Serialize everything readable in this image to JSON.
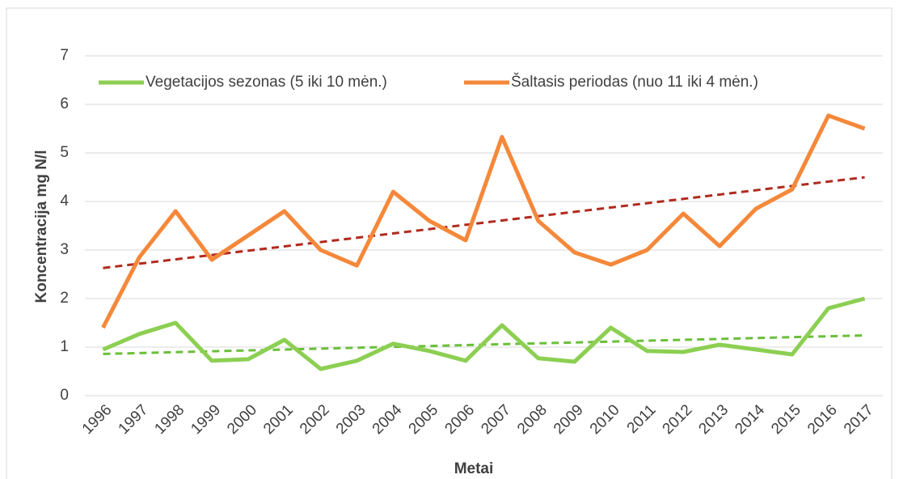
{
  "chart_data": {
    "type": "line",
    "x_label": "Metai",
    "y_label": "Koncentracija mg N/l",
    "categories": [
      "1996",
      "1997",
      "1998",
      "1999",
      "2000",
      "2001",
      "2002",
      "2003",
      "2004",
      "2005",
      "2006",
      "2007",
      "2008",
      "2009",
      "2010",
      "2011",
      "2012",
      "2013",
      "2014",
      "2015",
      "2016",
      "2017"
    ],
    "series": [
      {
        "name": "Vegetacijos sezonas  (5 iki 10 mėn.)",
        "color": "#8ccf52",
        "trend_color": "#6abf3a",
        "values": [
          0.95,
          1.27,
          1.5,
          0.72,
          0.75,
          1.15,
          0.55,
          0.72,
          1.07,
          0.92,
          0.72,
          1.45,
          0.77,
          0.7,
          1.4,
          0.92,
          0.9,
          1.05,
          0.95,
          0.85,
          1.8,
          2.0
        ]
      },
      {
        "name": "Šaltasis periodas (nuo 11 iki 4 mėn.)",
        "color": "#f5883a",
        "trend_color": "#b22a1e",
        "values": [
          1.4,
          2.85,
          3.8,
          2.8,
          3.3,
          3.8,
          3.0,
          2.68,
          4.2,
          3.6,
          3.2,
          5.33,
          3.6,
          2.95,
          2.7,
          3.0,
          3.75,
          3.08,
          3.85,
          4.25,
          5.77,
          5.5
        ]
      }
    ],
    "trendline": true,
    "ylim": [
      0,
      7
    ],
    "yticks": [
      0,
      1,
      2,
      3,
      4,
      5,
      6,
      7
    ],
    "grid": true,
    "legend": "top"
  }
}
